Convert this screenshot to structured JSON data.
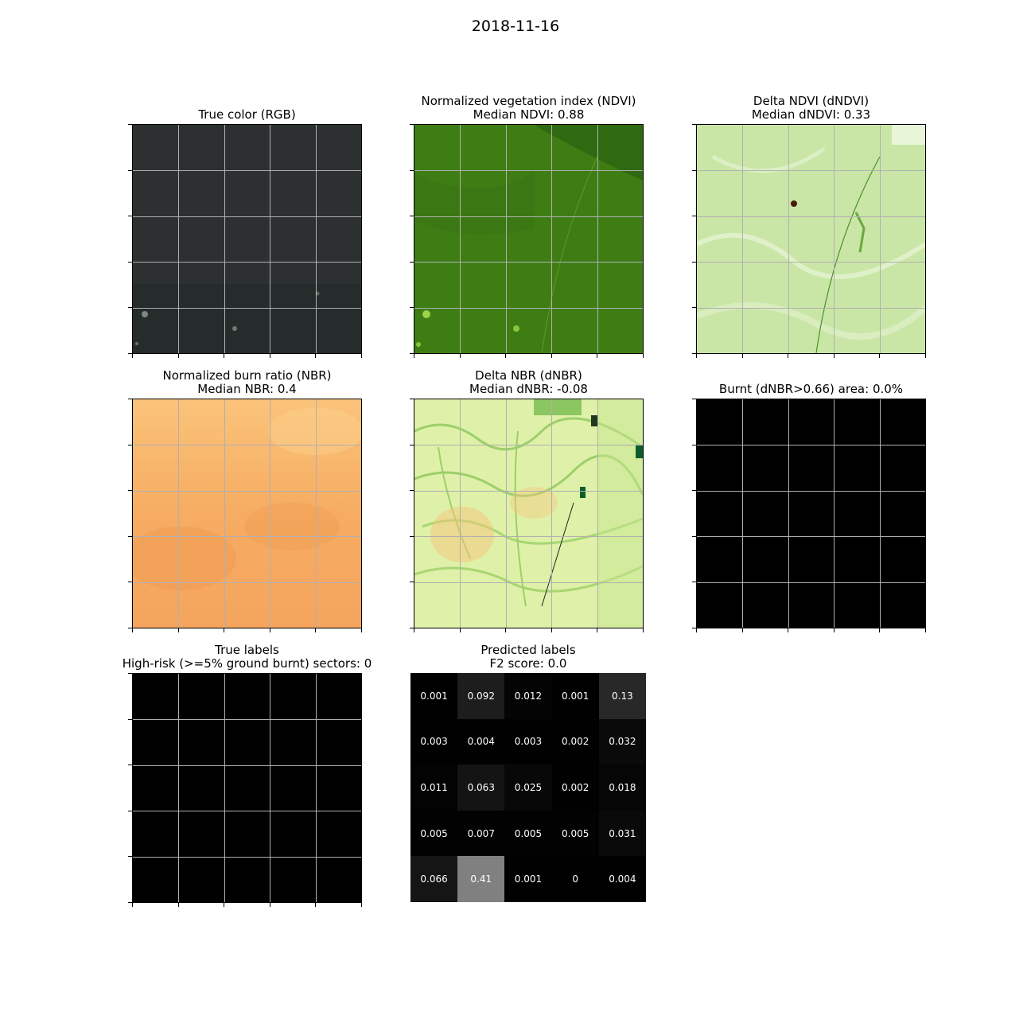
{
  "figure": {
    "title": "2018-11-16"
  },
  "panels": [
    {
      "id": "rgb",
      "title": "True color (RGB)",
      "subtitle": ""
    },
    {
      "id": "ndvi",
      "title": "Normalized vegetation index (NDVI)",
      "subtitle": "Median NDVI: 0.88"
    },
    {
      "id": "dndvi",
      "title": "Delta NDVI (dNDVI)",
      "subtitle": "Median dNDVI: 0.33"
    },
    {
      "id": "nbr",
      "title": "Normalized burn ratio (NBR)",
      "subtitle": "Median NBR: 0.4"
    },
    {
      "id": "dnbr",
      "title": "Delta NBR (dNBR)",
      "subtitle": "Median dNBR: -0.08"
    },
    {
      "id": "burnt",
      "title": "Burnt (dNBR>0.66) area: 0.0%",
      "subtitle": ""
    },
    {
      "id": "true_labels",
      "title": "True labels",
      "subtitle": "High-risk (>=5% ground burnt) sectors: 0"
    },
    {
      "id": "pred_labels",
      "title": "Predicted labels",
      "subtitle": "F2 score: 0.0"
    }
  ],
  "colors": {
    "rgb": "#2c3030",
    "ndvi": "#3e7d14",
    "dndvi": "#c9e6a6",
    "nbr": "#f7b167",
    "dnbr": "#dff0a8",
    "burnt": "#000000",
    "true_labels": "#000000"
  },
  "chart_data": {
    "type": "heatmap",
    "title": "Predicted labels",
    "grid_rows": 5,
    "grid_cols": 5,
    "values": [
      [
        0.001,
        0.092,
        0.012,
        0.001,
        0.13
      ],
      [
        0.003,
        0.004,
        0.003,
        0.002,
        0.032
      ],
      [
        0.011,
        0.063,
        0.025,
        0.002,
        0.018
      ],
      [
        0.005,
        0.007,
        0.005,
        0.005,
        0.031
      ],
      [
        0.066,
        0.41,
        0.001,
        0,
        0.004
      ]
    ],
    "labels": [
      [
        "0.001",
        "0.092",
        "0.012",
        "0.001",
        "0.13"
      ],
      [
        "0.003",
        "0.004",
        "0.003",
        "0.002",
        "0.032"
      ],
      [
        "0.011",
        "0.063",
        "0.025",
        "0.002",
        "0.018"
      ],
      [
        "0.005",
        "0.007",
        "0.005",
        "0.005",
        "0.031"
      ],
      [
        "0.066",
        "0.41",
        "0.001",
        "0",
        "0.004"
      ]
    ],
    "colormap": "gray",
    "value_range": [
      0,
      0.82
    ]
  }
}
